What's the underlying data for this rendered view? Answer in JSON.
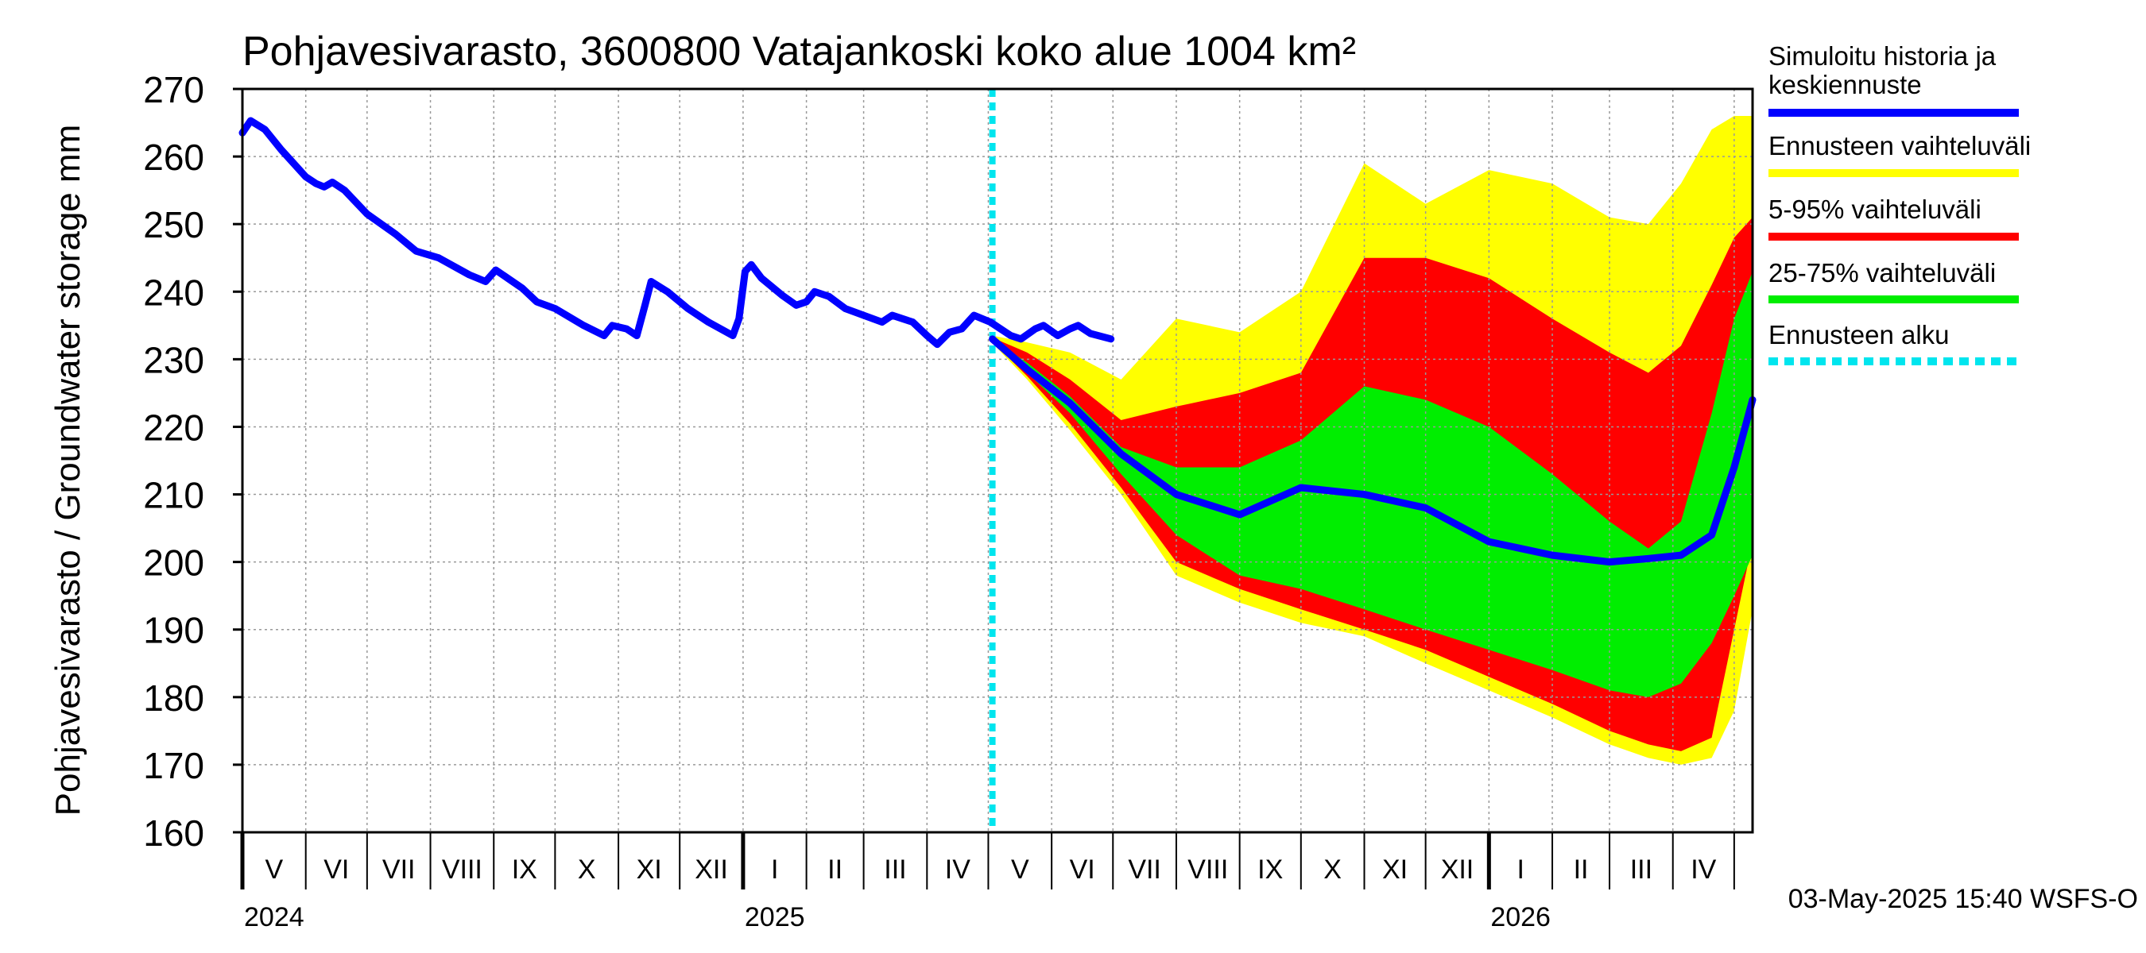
{
  "chart_data": {
    "type": "area",
    "title": "Pohjavesivarasto, 3600800 Vatajankoski koko alue 1004 km²",
    "ylabel": "Pohjavesivarasto / Groundwater storage   mm",
    "ylim": [
      160,
      270
    ],
    "yticks": [
      160,
      170,
      180,
      190,
      200,
      210,
      220,
      230,
      240,
      250,
      260,
      270
    ],
    "xlim": [
      "2024-05-01",
      "2026-05-10"
    ],
    "grid": true,
    "legend_position": "right",
    "forecast_start": "2025-05-03",
    "month_labels": [
      {
        "label": "V",
        "month": "2024-05"
      },
      {
        "label": "VI",
        "month": "2024-06"
      },
      {
        "label": "VII",
        "month": "2024-07"
      },
      {
        "label": "VIII",
        "month": "2024-08"
      },
      {
        "label": "IX",
        "month": "2024-09"
      },
      {
        "label": "X",
        "month": "2024-10"
      },
      {
        "label": "XI",
        "month": "2024-11"
      },
      {
        "label": "XII",
        "month": "2024-12"
      },
      {
        "label": "I",
        "month": "2025-01"
      },
      {
        "label": "II",
        "month": "2025-02"
      },
      {
        "label": "III",
        "month": "2025-03"
      },
      {
        "label": "IV",
        "month": "2025-04"
      },
      {
        "label": "V",
        "month": "2025-05"
      },
      {
        "label": "VI",
        "month": "2025-06"
      },
      {
        "label": "VII",
        "month": "2025-07"
      },
      {
        "label": "VIII",
        "month": "2025-08"
      },
      {
        "label": "IX",
        "month": "2025-09"
      },
      {
        "label": "X",
        "month": "2025-10"
      },
      {
        "label": "XI",
        "month": "2025-11"
      },
      {
        "label": "XII",
        "month": "2025-12"
      },
      {
        "label": "I",
        "month": "2026-01"
      },
      {
        "label": "II",
        "month": "2026-02"
      },
      {
        "label": "III",
        "month": "2026-03"
      },
      {
        "label": "IV",
        "month": "2026-04"
      }
    ],
    "year_labels": [
      {
        "label": "2024",
        "date": "2024-05-01"
      },
      {
        "label": "2025",
        "date": "2025-01-01"
      },
      {
        "label": "2026",
        "date": "2026-01-01"
      }
    ],
    "legend": [
      {
        "label": "Simuloitu historia ja keskiennuste",
        "color": "#0000ff"
      },
      {
        "label": "Ennusteen vaihteluväli",
        "color": "#ffff00"
      },
      {
        "label": "5-95% vaihteluväli",
        "color": "#ff0000"
      },
      {
        "label": "25-75% vaihteluväli",
        "color": "#00ee00"
      },
      {
        "label": "Ennusteen alku",
        "color": "#00e5ee"
      }
    ],
    "series": [
      {
        "name": "Simuloitu historia ja keskiennuste",
        "color": "#0000ff",
        "points": [
          [
            "2024-05-01",
            263.5
          ],
          [
            "2024-05-05",
            265.3
          ],
          [
            "2024-05-12",
            264
          ],
          [
            "2024-05-20",
            261
          ],
          [
            "2024-06-01",
            257
          ],
          [
            "2024-06-06",
            256
          ],
          [
            "2024-06-10",
            255.5
          ],
          [
            "2024-06-14",
            256.2
          ],
          [
            "2024-06-20",
            255
          ],
          [
            "2024-07-01",
            251.5
          ],
          [
            "2024-07-15",
            248.5
          ],
          [
            "2024-07-25",
            246
          ],
          [
            "2024-08-05",
            245
          ],
          [
            "2024-08-20",
            242.5
          ],
          [
            "2024-08-28",
            241.5
          ],
          [
            "2024-09-02",
            243.2
          ],
          [
            "2024-09-15",
            240.5
          ],
          [
            "2024-09-22",
            238.5
          ],
          [
            "2024-10-01",
            237.5
          ],
          [
            "2024-10-15",
            235
          ],
          [
            "2024-10-25",
            233.5
          ],
          [
            "2024-10-29",
            235
          ],
          [
            "2024-11-05",
            234.5
          ],
          [
            "2024-11-10",
            233.5
          ],
          [
            "2024-11-14",
            238
          ],
          [
            "2024-11-17",
            241.5
          ],
          [
            "2024-11-25",
            240
          ],
          [
            "2024-12-05",
            237.5
          ],
          [
            "2024-12-15",
            235.5
          ],
          [
            "2024-12-27",
            233.5
          ],
          [
            "2024-12-30",
            236
          ],
          [
            "2025-01-02",
            243
          ],
          [
            "2025-01-05",
            244
          ],
          [
            "2025-01-10",
            242
          ],
          [
            "2025-01-20",
            239.5
          ],
          [
            "2025-01-27",
            238
          ],
          [
            "2025-02-01",
            238.5
          ],
          [
            "2025-02-05",
            240
          ],
          [
            "2025-02-12",
            239.3
          ],
          [
            "2025-02-20",
            237.5
          ],
          [
            "2025-03-01",
            236.5
          ],
          [
            "2025-03-10",
            235.5
          ],
          [
            "2025-03-15",
            236.5
          ],
          [
            "2025-03-25",
            235.5
          ],
          [
            "2025-04-01",
            233.5
          ],
          [
            "2025-04-06",
            232.2
          ],
          [
            "2025-04-12",
            234
          ],
          [
            "2025-04-18",
            234.5
          ],
          [
            "2025-04-24",
            236.5
          ],
          [
            "2025-05-02",
            235.5
          ],
          [
            "2025-05-12",
            233.5
          ],
          [
            "2025-05-17",
            233
          ],
          [
            "2025-05-24",
            234.5
          ],
          [
            "2025-05-28",
            235
          ],
          [
            "2025-06-04",
            233.5
          ],
          [
            "2025-06-10",
            234.5
          ],
          [
            "2025-06-14",
            235
          ],
          [
            "2025-06-20",
            233.8
          ],
          [
            "2025-06-30",
            233
          ]
        ]
      },
      {
        "name": "Ennusteen alku",
        "color": "#00e5ee",
        "x": "2025-05-03"
      }
    ],
    "forecast_bands": {
      "note": "dates relative to forecast start",
      "dates": [
        "2025-05-03",
        "2025-05-20",
        "2025-06-10",
        "2025-07-05",
        "2025-08-01",
        "2025-09-01",
        "2025-10-01",
        "2025-11-01",
        "2025-12-01",
        "2026-01-01",
        "2026-02-01",
        "2026-03-01",
        "2026-03-20",
        "2026-04-05",
        "2026-04-20",
        "2026-05-01",
        "2026-05-10"
      ],
      "max": [
        233.5,
        232.5,
        231,
        227,
        236,
        234,
        240,
        259,
        253,
        258,
        256,
        251,
        250,
        256,
        264,
        266,
        266
      ],
      "p95": [
        233.2,
        231,
        227,
        221,
        223,
        225,
        228,
        245,
        245,
        242,
        236,
        231,
        228,
        232,
        241,
        248,
        251
      ],
      "p75": [
        233,
        229.5,
        224.5,
        217,
        214,
        214,
        218,
        226,
        224,
        220,
        213,
        206,
        202,
        206,
        222,
        236,
        243
      ],
      "p25": [
        232.8,
        228,
        222,
        213,
        204,
        198,
        196,
        193,
        190,
        187,
        184,
        181,
        180,
        182,
        188,
        195,
        201
      ],
      "p5": [
        232.6,
        227.5,
        220.5,
        211,
        200,
        196,
        193,
        190,
        187,
        183,
        179,
        175,
        173,
        172,
        174,
        190,
        203
      ],
      "min": [
        232.4,
        227,
        219.5,
        210,
        198,
        194,
        191,
        189,
        185,
        181,
        177,
        173,
        171,
        170,
        171,
        178,
        193
      ],
      "median": [
        233,
        228.5,
        223.5,
        216,
        210,
        207,
        211,
        210,
        208,
        203,
        201,
        200,
        200.5,
        201,
        204,
        214,
        224
      ]
    }
  },
  "timestamp": "03-May-2025 15:40 WSFS-O"
}
